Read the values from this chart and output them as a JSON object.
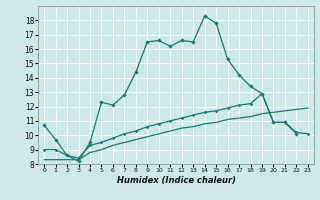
{
  "xlabel": "Humidex (Indice chaleur)",
  "background_color": "#cce8e8",
  "grid_color": "#ffffff",
  "line_color": "#1a7a6e",
  "xlim": [
    -0.5,
    23.5
  ],
  "ylim": [
    8,
    19
  ],
  "xticks": [
    0,
    1,
    2,
    3,
    4,
    5,
    6,
    7,
    8,
    9,
    10,
    11,
    12,
    13,
    14,
    15,
    16,
    17,
    18,
    19,
    20,
    21,
    22,
    23
  ],
  "yticks": [
    8,
    9,
    10,
    11,
    12,
    13,
    14,
    15,
    16,
    17,
    18
  ],
  "curve1_x": [
    0,
    1,
    2,
    3,
    4,
    5,
    6,
    7,
    8,
    9,
    10,
    11,
    12,
    13,
    14,
    15,
    16,
    17,
    18,
    19,
    20,
    21,
    22
  ],
  "curve1_y": [
    10.7,
    9.7,
    8.6,
    8.2,
    9.5,
    12.3,
    12.1,
    12.8,
    14.4,
    16.5,
    16.6,
    16.2,
    16.6,
    16.5,
    18.3,
    17.8,
    15.3,
    14.2,
    13.4,
    12.9,
    10.9,
    10.9,
    10.1
  ],
  "curve2_x": [
    0,
    1,
    2,
    3,
    4,
    5,
    6,
    7,
    8,
    9,
    10,
    11,
    12,
    13,
    14,
    15,
    16,
    17,
    18,
    19,
    20,
    21,
    22,
    23
  ],
  "curve2_y": [
    9.0,
    9.0,
    8.6,
    8.4,
    9.3,
    9.5,
    9.8,
    10.1,
    10.3,
    10.6,
    10.8,
    11.0,
    11.2,
    11.4,
    11.6,
    11.7,
    11.9,
    12.1,
    12.2,
    12.9,
    10.9,
    10.9,
    10.2,
    10.1
  ],
  "curve3_x": [
    0,
    1,
    2,
    3,
    4,
    5,
    6,
    7,
    8,
    9,
    10,
    11,
    12,
    13,
    14,
    15,
    16,
    17,
    18,
    19,
    20,
    21,
    22,
    23
  ],
  "curve3_y": [
    8.3,
    8.3,
    8.3,
    8.3,
    8.8,
    9.0,
    9.3,
    9.5,
    9.7,
    9.9,
    10.1,
    10.3,
    10.5,
    10.6,
    10.8,
    10.9,
    11.1,
    11.2,
    11.3,
    11.5,
    11.6,
    11.7,
    11.8,
    11.9
  ]
}
